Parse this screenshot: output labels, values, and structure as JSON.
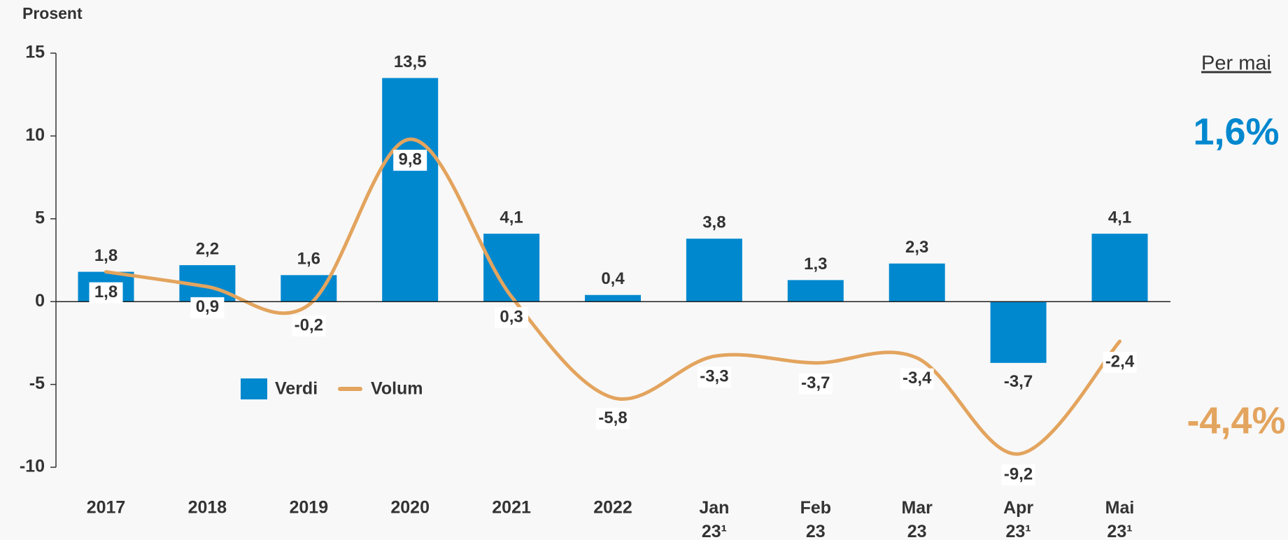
{
  "chart_data": {
    "type": "bar-line",
    "y_axis_label": "Prosent",
    "categories": [
      "2017",
      "2018",
      "2019",
      "2020",
      "2021",
      "2022",
      "Jan 23¹",
      "Feb 23",
      "Mar 23",
      "Apr 23¹",
      "Mai 23¹"
    ],
    "series": [
      {
        "name": "Verdi",
        "type": "bar",
        "color": "#0088cf",
        "values": [
          1.8,
          2.2,
          1.6,
          13.5,
          4.1,
          0.4,
          3.8,
          1.3,
          2.3,
          -3.7,
          4.1
        ],
        "value_labels": [
          "1,8",
          "2,2",
          "1,6",
          "13,5",
          "4,1",
          "0,4",
          "3,8",
          "1,3",
          "2,3",
          "-3,7",
          "4,1"
        ]
      },
      {
        "name": "Volum",
        "type": "line",
        "color": "#e3a45e",
        "values": [
          1.8,
          0.9,
          -0.2,
          9.8,
          0.3,
          -5.8,
          -3.3,
          -3.7,
          -3.4,
          -9.2,
          -2.4
        ],
        "value_labels": [
          "1,8",
          "0,9",
          "-0,2",
          "9,8",
          "0,3",
          "-5,8",
          "-3,3",
          "-3,7",
          "-3,4",
          "-9,2",
          "-2,4"
        ]
      }
    ],
    "ylim": [
      -10,
      15
    ],
    "yticks": [
      15,
      10,
      5,
      0,
      -5,
      -10
    ],
    "annotations": {
      "heading": "Per mai",
      "verdi": "1,6%",
      "volum": "-4,4%"
    }
  }
}
